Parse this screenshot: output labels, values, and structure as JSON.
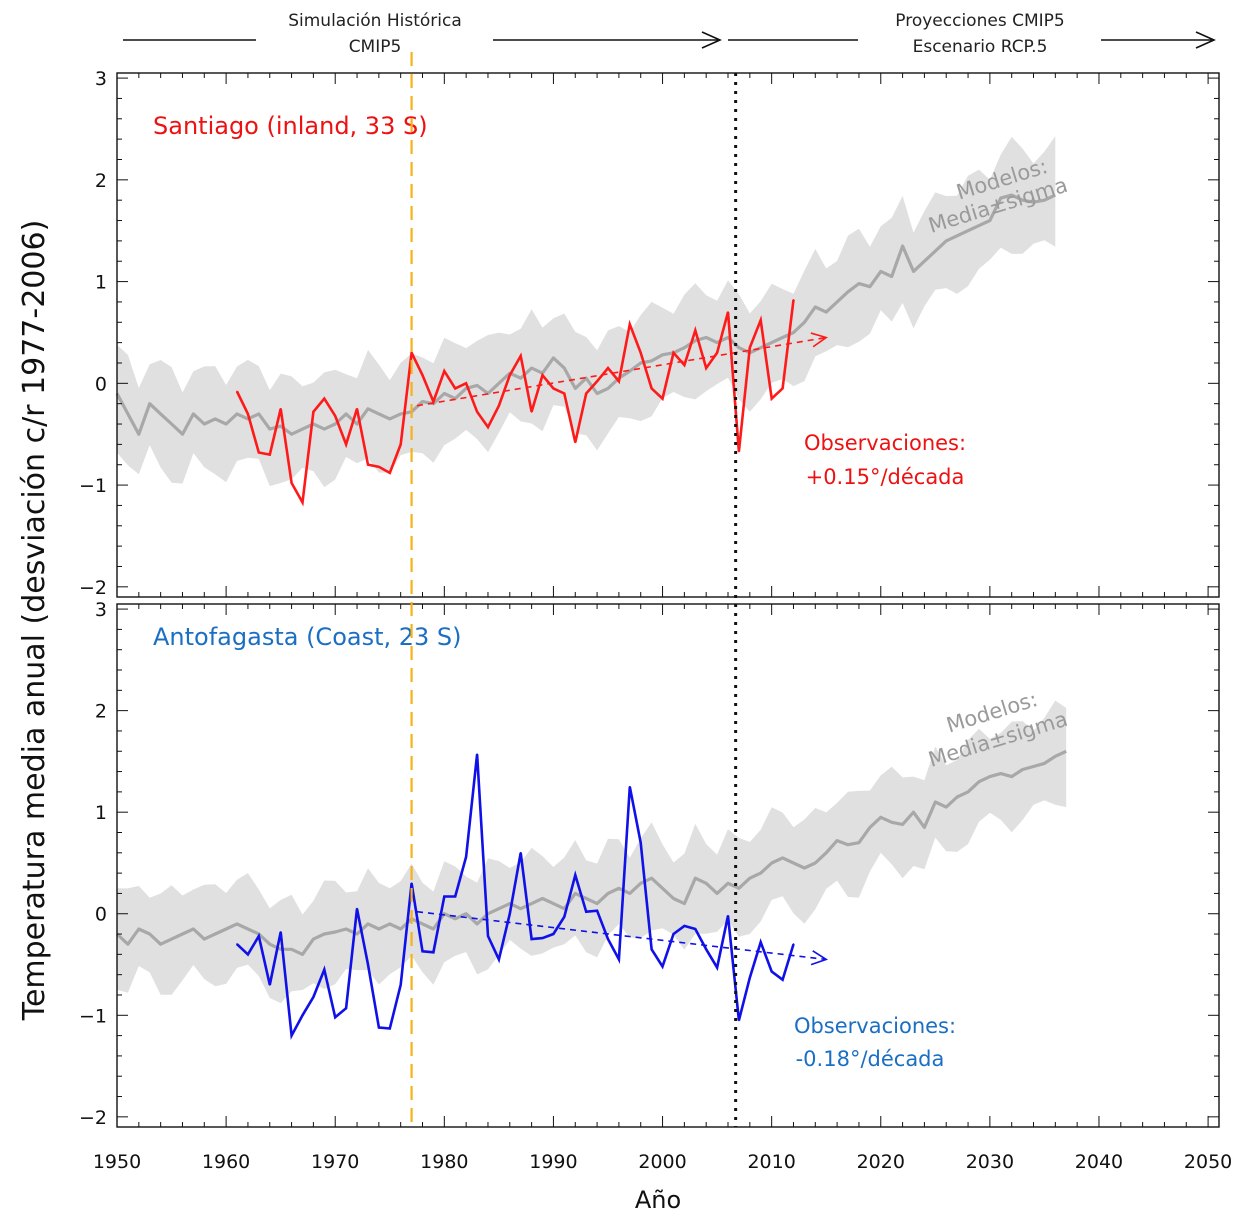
{
  "header": {
    "historical_line1": "Simulación Histórica",
    "historical_line2": "CMIP5",
    "projection_line1": "Proyecciones CMIP5",
    "projection_line2": "Escenario RCP.5"
  },
  "colors": {
    "santiago": "#ff1a1a",
    "antofagasta": "#1010e8",
    "santiago_text": "#ee1111",
    "antofagasta_text": "#1a6fc4",
    "model_band": "#e0e0e0",
    "model_mean": "#a8a8a8",
    "vline_orange": "#f5b21a",
    "vline_black": "#111111"
  },
  "chart_data": [
    {
      "type": "line",
      "station": "Santiago (inland, 33 S)",
      "ylabel": "Temperatura media anual (desviación c/r 1977-2006)",
      "xlabel": "Año",
      "xlim": [
        1950,
        2051
      ],
      "ylim": [
        -2.1,
        3.05
      ],
      "xticks": [
        1950,
        1960,
        1970,
        1980,
        1990,
        2000,
        2010,
        2020,
        2030,
        2040,
        2050
      ],
      "yticks": [
        -2,
        -1,
        0,
        1,
        2,
        3
      ],
      "vlines": [
        1977,
        2006.7
      ],
      "models_label_line1": "Modelos:",
      "models_label_line2": "Media±sigma",
      "obs_label_line1": "Observaciones:",
      "obs_label_line2": "+0.15°/década",
      "trend": {
        "x": [
          1977.5,
          2015
        ],
        "y": [
          -0.22,
          0.45
        ]
      },
      "obs_x": [
        1961,
        1962,
        1963,
        1964,
        1965,
        1966,
        1967,
        1968,
        1969,
        1970,
        1971,
        1972,
        1973,
        1974,
        1975,
        1976,
        1977,
        1978,
        1979,
        1980,
        1981,
        1982,
        1983,
        1984,
        1985,
        1986,
        1987,
        1988,
        1989,
        1990,
        1991,
        1992,
        1993,
        1994,
        1995,
        1996,
        1997,
        1998,
        1999,
        2000,
        2001,
        2002,
        2003,
        2004,
        2005,
        2006,
        2007,
        2008,
        2009,
        2010,
        2011,
        2012
      ],
      "obs_y": [
        -0.08,
        -0.3,
        -0.68,
        -0.7,
        -0.25,
        -0.98,
        -1.17,
        -0.28,
        -0.15,
        -0.32,
        -0.6,
        -0.25,
        -0.8,
        -0.82,
        -0.88,
        -0.6,
        0.3,
        0.08,
        -0.18,
        0.12,
        -0.05,
        0.0,
        -0.28,
        -0.43,
        -0.22,
        0.08,
        0.27,
        -0.28,
        0.08,
        -0.05,
        -0.1,
        -0.58,
        -0.1,
        0.02,
        0.15,
        0.02,
        0.58,
        0.3,
        -0.05,
        -0.15,
        0.3,
        0.18,
        0.52,
        0.15,
        0.3,
        0.7,
        -0.67,
        0.35,
        0.62,
        -0.15,
        -0.05,
        0.82
      ],
      "model_x_start": 1950,
      "model_mean": [
        -0.1,
        -0.3,
        -0.5,
        -0.2,
        -0.3,
        -0.4,
        -0.5,
        -0.3,
        -0.4,
        -0.35,
        -0.4,
        -0.3,
        -0.35,
        -0.3,
        -0.45,
        -0.42,
        -0.5,
        -0.45,
        -0.4,
        -0.45,
        -0.4,
        -0.3,
        -0.4,
        -0.25,
        -0.3,
        -0.35,
        -0.3,
        -0.28,
        -0.18,
        -0.2,
        -0.1,
        -0.15,
        -0.05,
        -0.02,
        -0.1,
        0.0,
        0.1,
        0.05,
        0.15,
        0.1,
        0.25,
        0.15,
        -0.05,
        0.05,
        -0.1,
        -0.05,
        0.05,
        0.12,
        0.2,
        0.22,
        0.28,
        0.3,
        0.35,
        0.42,
        0.45,
        0.4,
        0.45,
        0.35,
        0.3,
        0.35,
        0.4,
        0.45,
        0.5,
        0.6,
        0.75,
        0.7,
        0.8,
        0.9,
        0.98,
        0.95,
        1.1,
        1.05,
        1.35,
        1.1,
        1.2,
        1.3,
        1.4,
        1.45,
        1.5,
        1.55,
        1.6,
        1.82,
        1.85,
        1.8,
        1.78,
        1.8,
        1.85
      ],
      "model_sigma": 0.48
    },
    {
      "type": "line",
      "station": "Antofagasta (Coast, 23 S)",
      "xlim": [
        1950,
        2051
      ],
      "ylim": [
        -2.1,
        3.05
      ],
      "xticks": [
        1950,
        1960,
        1970,
        1980,
        1990,
        2000,
        2010,
        2020,
        2030,
        2040,
        2050
      ],
      "yticks": [
        -2,
        -1,
        0,
        1,
        2,
        3
      ],
      "vlines": [
        1977,
        2006.7
      ],
      "models_label_line1": "Modelos:",
      "models_label_line2": "Media±sigma",
      "obs_label_line1": "Observaciones:",
      "obs_label_line2": "-0.18°/década",
      "trend": {
        "x": [
          1977.5,
          2015
        ],
        "y": [
          0.02,
          -0.45
        ]
      },
      "obs_x": [
        1961,
        1962,
        1963,
        1964,
        1965,
        1966,
        1967,
        1968,
        1969,
        1970,
        1971,
        1972,
        1973,
        1974,
        1975,
        1976,
        1977,
        1978,
        1979,
        1980,
        1981,
        1982,
        1983,
        1984,
        1985,
        1986,
        1987,
        1988,
        1989,
        1990,
        1991,
        1992,
        1993,
        1994,
        1995,
        1996,
        1997,
        1998,
        1999,
        2000,
        2001,
        2002,
        2003,
        2004,
        2005,
        2006,
        2007,
        2008,
        2009,
        2010,
        2011,
        2012
      ],
      "obs_y": [
        -0.3,
        -0.4,
        -0.22,
        -0.7,
        -0.18,
        -1.2,
        -1.0,
        -0.82,
        -0.55,
        -1.02,
        -0.93,
        0.05,
        -0.5,
        -1.12,
        -1.13,
        -0.7,
        0.3,
        -0.37,
        -0.38,
        0.17,
        0.17,
        0.56,
        1.57,
        -0.22,
        -0.45,
        0.0,
        0.6,
        -0.25,
        -0.24,
        -0.2,
        -0.03,
        0.38,
        0.02,
        0.03,
        -0.25,
        -0.45,
        1.25,
        0.7,
        -0.35,
        -0.52,
        -0.2,
        -0.12,
        -0.15,
        -0.35,
        -0.53,
        -0.02,
        -1.05,
        -0.63,
        -0.28,
        -0.57,
        -0.65,
        -0.3
      ],
      "model_x_start": 1950,
      "model_mean": [
        -0.2,
        -0.3,
        -0.15,
        -0.2,
        -0.3,
        -0.25,
        -0.2,
        -0.15,
        -0.25,
        -0.2,
        -0.15,
        -0.1,
        -0.15,
        -0.2,
        -0.3,
        -0.35,
        -0.35,
        -0.4,
        -0.25,
        -0.2,
        -0.18,
        -0.15,
        -0.2,
        -0.1,
        -0.15,
        -0.1,
        -0.15,
        -0.05,
        -0.1,
        -0.15,
        0.0,
        -0.05,
        0.0,
        -0.1,
        0.0,
        0.05,
        0.1,
        0.05,
        0.1,
        0.15,
        0.1,
        0.05,
        0.2,
        0.15,
        0.1,
        0.2,
        0.25,
        0.2,
        0.3,
        0.35,
        0.25,
        0.15,
        0.1,
        0.35,
        0.3,
        0.2,
        0.3,
        0.25,
        0.35,
        0.4,
        0.5,
        0.55,
        0.5,
        0.45,
        0.5,
        0.6,
        0.72,
        0.68,
        0.7,
        0.85,
        0.95,
        0.9,
        0.88,
        1.0,
        0.85,
        1.1,
        1.05,
        1.15,
        1.2,
        1.3,
        1.35,
        1.38,
        1.35,
        1.42,
        1.45,
        1.48,
        1.55,
        1.6
      ],
      "model_sigma": 0.45
    }
  ],
  "xaxis_title": "Año"
}
